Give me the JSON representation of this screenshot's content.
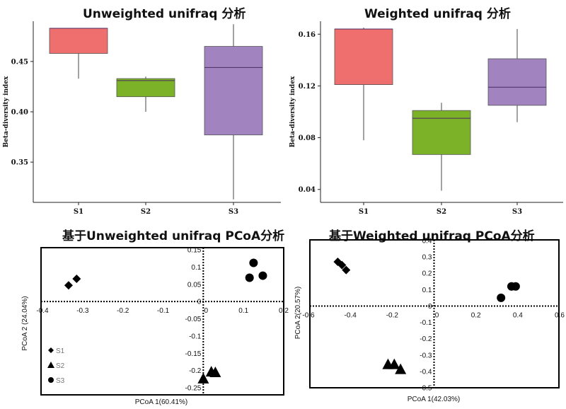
{
  "chart_data": [
    {
      "type": "box",
      "title": "Unweighted unifraq 分析",
      "ylabel": "Beta-diversity index",
      "categories": [
        "S1",
        "S2",
        "S3"
      ],
      "colors": [
        "#ee6f6d",
        "#7cb228",
        "#a183c0"
      ],
      "ylim": [
        0.31,
        0.49
      ],
      "yticks": [
        0.35,
        0.4,
        0.45
      ],
      "ytick_labels": [
        "0.35",
        "0.40",
        "0.45"
      ],
      "boxes": [
        {
          "name": "S1",
          "min": 0.433,
          "q1": 0.458,
          "median": 0.483,
          "q3": 0.483,
          "max": 0.483
        },
        {
          "name": "S2",
          "min": 0.4,
          "q1": 0.415,
          "median": 0.431,
          "q3": 0.433,
          "max": 0.435
        },
        {
          "name": "S3",
          "min": 0.313,
          "q1": 0.377,
          "median": 0.444,
          "q3": 0.465,
          "max": 0.487
        }
      ]
    },
    {
      "type": "box",
      "title": "Weighted unifraq 分析",
      "ylabel": "Beta-diversity index",
      "categories": [
        "S1",
        "S2",
        "S3"
      ],
      "colors": [
        "#ee6f6d",
        "#7cb228",
        "#a183c0"
      ],
      "ylim": [
        0.03,
        0.17
      ],
      "yticks": [
        0.04,
        0.08,
        0.12,
        0.16
      ],
      "ytick_labels": [
        "0.04",
        "0.08",
        "0.12",
        "0.16"
      ],
      "boxes": [
        {
          "name": "S1",
          "min": 0.078,
          "q1": 0.121,
          "median": 0.164,
          "q3": 0.164,
          "max": 0.165
        },
        {
          "name": "S2",
          "min": 0.039,
          "q1": 0.067,
          "median": 0.095,
          "q3": 0.101,
          "max": 0.107
        },
        {
          "name": "S3",
          "min": 0.092,
          "q1": 0.105,
          "median": 0.119,
          "q3": 0.141,
          "max": 0.164
        }
      ]
    },
    {
      "type": "scatter",
      "title": "基于Unweighted unifraq PCoA分析",
      "xlabel": "PCoA 1(60.41%)",
      "ylabel": "PCoA 2 (24.04%)",
      "xlim": [
        -0.4,
        0.2
      ],
      "ylim": [
        -0.25,
        0.15
      ],
      "xticks": [
        -0.4,
        -0.3,
        -0.2,
        -0.1,
        0,
        0.1,
        0.2
      ],
      "xtick_labels": [
        "-0.4",
        "-0.3",
        "-0.2",
        "-0.1",
        "0",
        "0.1",
        "0.2"
      ],
      "yticks": [
        0.15,
        0.1,
        0.05,
        0,
        -0.05,
        -0.1,
        -0.15,
        -0.2,
        -0.25
      ],
      "ytick_labels": [
        "0.15",
        "0.1",
        "0.05",
        "0",
        "-0.05",
        "-0.1",
        "-0.15",
        "-0.2",
        "-0.25"
      ],
      "legend": {
        "placement": "bottom-left",
        "entries": [
          "S1",
          "S2",
          "S3"
        ]
      },
      "series": [
        {
          "name": "S1",
          "marker": "diamond",
          "points": [
            [
              -0.335,
              0.047
            ],
            [
              -0.315,
              0.066
            ]
          ]
        },
        {
          "name": "S2",
          "marker": "triangle",
          "points": [
            [
              0.0,
              -0.225
            ],
            [
              0.02,
              -0.205
            ],
            [
              0.03,
              -0.207
            ]
          ]
        },
        {
          "name": "S3",
          "marker": "circle",
          "points": [
            [
              0.125,
              0.112
            ],
            [
              0.115,
              0.069
            ],
            [
              0.148,
              0.075
            ]
          ]
        }
      ]
    },
    {
      "type": "scatter",
      "title": "基于Weighted unifraq PCoA分析",
      "xlabel": "PCoA 1(42.03%)",
      "ylabel": "PCoA 2(20.57%)",
      "xlim": [
        -0.6,
        0.6
      ],
      "ylim": [
        -0.5,
        0.4
      ],
      "xticks": [
        -0.6,
        -0.4,
        -0.2,
        0,
        0.2,
        0.4,
        0.6
      ],
      "xtick_labels": [
        "-0.6",
        "-0.4",
        "-0.2",
        "0",
        "0.2",
        "0.4",
        "0.6"
      ],
      "yticks": [
        0.4,
        0.3,
        0.2,
        0.1,
        0,
        -0.1,
        -0.2,
        -0.3,
        -0.4,
        -0.5
      ],
      "ytick_labels": [
        "0.4",
        "0.3",
        "0.2",
        "0.1",
        "0",
        "-0.1",
        "-0.2",
        "-0.3",
        "-0.4",
        "-0.5"
      ],
      "series": [
        {
          "name": "S1",
          "marker": "diamond",
          "points": [
            [
              -0.46,
              0.27
            ],
            [
              -0.44,
              0.25
            ],
            [
              -0.42,
              0.22
            ]
          ]
        },
        {
          "name": "S2",
          "marker": "triangle",
          "points": [
            [
              -0.22,
              -0.36
            ],
            [
              -0.19,
              -0.36
            ],
            [
              -0.16,
              -0.39
            ]
          ]
        },
        {
          "name": "S3",
          "marker": "circle",
          "points": [
            [
              0.32,
              0.05
            ],
            [
              0.37,
              0.12
            ],
            [
              0.39,
              0.12
            ]
          ]
        }
      ]
    }
  ]
}
